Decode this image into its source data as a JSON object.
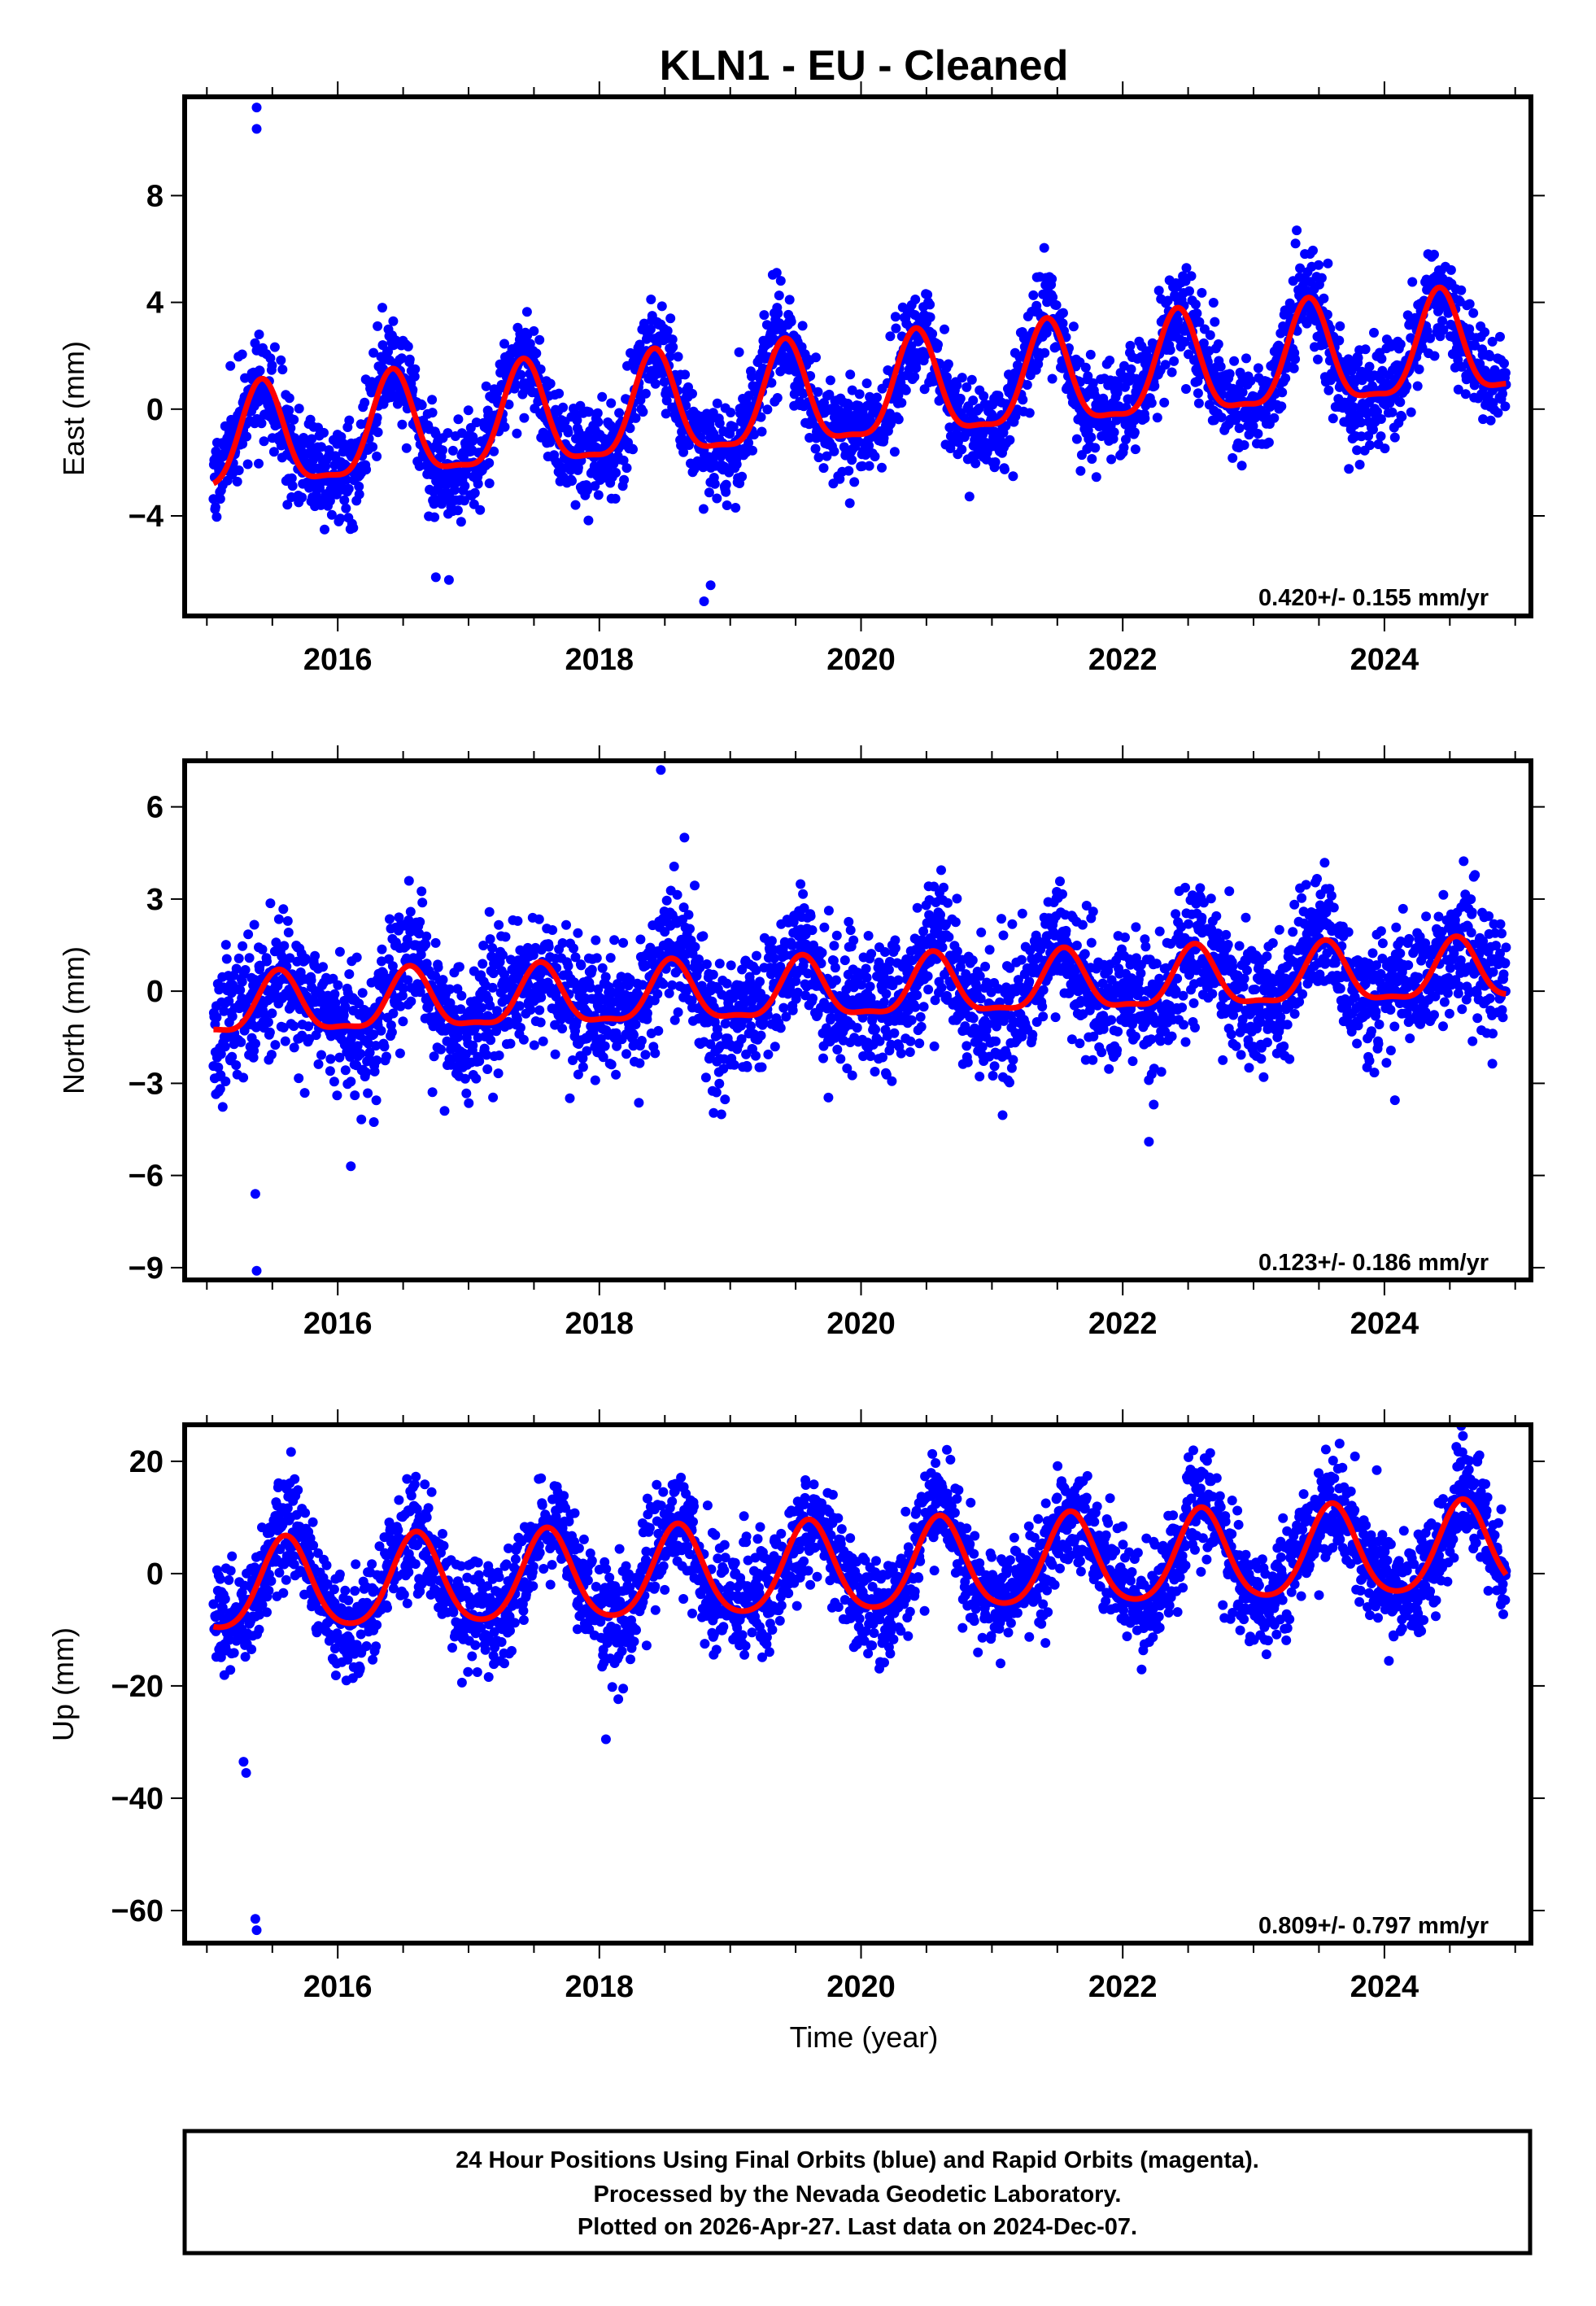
{
  "chart_data": {
    "type": "scatter",
    "title": "KLN1  - EU - Cleaned",
    "xlabel": "Time (year)",
    "xlim": [
      2014.83,
      2025.12
    ],
    "x_ticks": [
      2016,
      2018,
      2020,
      2022,
      2024
    ],
    "x_minor_step": 0.5,
    "data_range": [
      2015.05,
      2024.93
    ],
    "colors": {
      "points": "#0000ff",
      "fit": "#ff0000",
      "frame": "#000000"
    },
    "panels": [
      {
        "name": "east",
        "ylabel": "East (mm)",
        "ylim": [
          -7.75,
          11.7
        ],
        "y_ticks": [
          -4,
          0,
          4,
          8
        ],
        "y_tick_labels": [
          "−4",
          "0",
          "4",
          "8"
        ],
        "velocity_text": "0.420+/- 0.155 mm/yr",
        "model": {
          "mean_start": -1.45,
          "rate": 0.38,
          "amp1": 1.9,
          "phase1": 0.42,
          "amp2": 0.55,
          "phase2": 0.42,
          "noise": 0.9,
          "seed": 11
        },
        "outliers": [
          [
            2015.38,
            11.3
          ],
          [
            2015.38,
            10.5
          ],
          [
            2018.8,
            -7.2
          ],
          [
            2018.85,
            -6.6
          ],
          [
            2016.85,
            -6.4
          ],
          [
            2016.75,
            -6.3
          ]
        ]
      },
      {
        "name": "north",
        "ylabel": "North (mm)",
        "ylim": [
          -9.4,
          7.5
        ],
        "y_ticks": [
          -9,
          -6,
          -3,
          0,
          3,
          6
        ],
        "y_tick_labels": [
          "−9",
          "−6",
          "−3",
          "0",
          "3",
          "6"
        ],
        "velocity_text": "0.123+/- 0.186 mm/yr",
        "model": {
          "mean_start": -0.6,
          "rate": 0.12,
          "amp1": 0.95,
          "phase1": 0.55,
          "amp2": 0.3,
          "phase2": 0.55,
          "noise": 1.05,
          "seed": 23
        },
        "outliers": [
          [
            2015.38,
            -9.1
          ],
          [
            2015.37,
            -6.6
          ],
          [
            2018.47,
            7.2
          ],
          [
            2016.1,
            -5.7
          ],
          [
            2022.2,
            -4.9
          ],
          [
            2018.65,
            5.0
          ]
        ]
      },
      {
        "name": "up",
        "ylabel": "Up (mm)",
        "ylim": [
          -65.8,
          26.5
        ],
        "y_ticks": [
          -60,
          -40,
          -20,
          0,
          20
        ],
        "y_tick_labels": [
          "−60",
          "−40",
          "−20",
          "0",
          "20"
        ],
        "velocity_text": "0.809+/- 0.797 mm/yr",
        "model": {
          "mean_start": -2.8,
          "rate": 0.72,
          "amp1": 8.0,
          "phase1": 0.6,
          "amp2": 1.2,
          "phase2": 0.6,
          "noise": 4.6,
          "seed": 37
        },
        "outliers": [
          [
            2015.38,
            -63.5
          ],
          [
            2015.37,
            -61.5
          ],
          [
            2015.3,
            -35.5
          ],
          [
            2015.28,
            -33.5
          ],
          [
            2018.05,
            -29.5
          ],
          [
            2024.6,
            24.5
          ]
        ]
      }
    ]
  },
  "footer": {
    "line1": "24 Hour Positions Using Final Orbits (blue) and Rapid Orbits (magenta).",
    "line2": "Processed by the Nevada Geodetic Laboratory.",
    "line3": "Plotted on 2026-Apr-27. Last data on 2024-Dec-07."
  }
}
